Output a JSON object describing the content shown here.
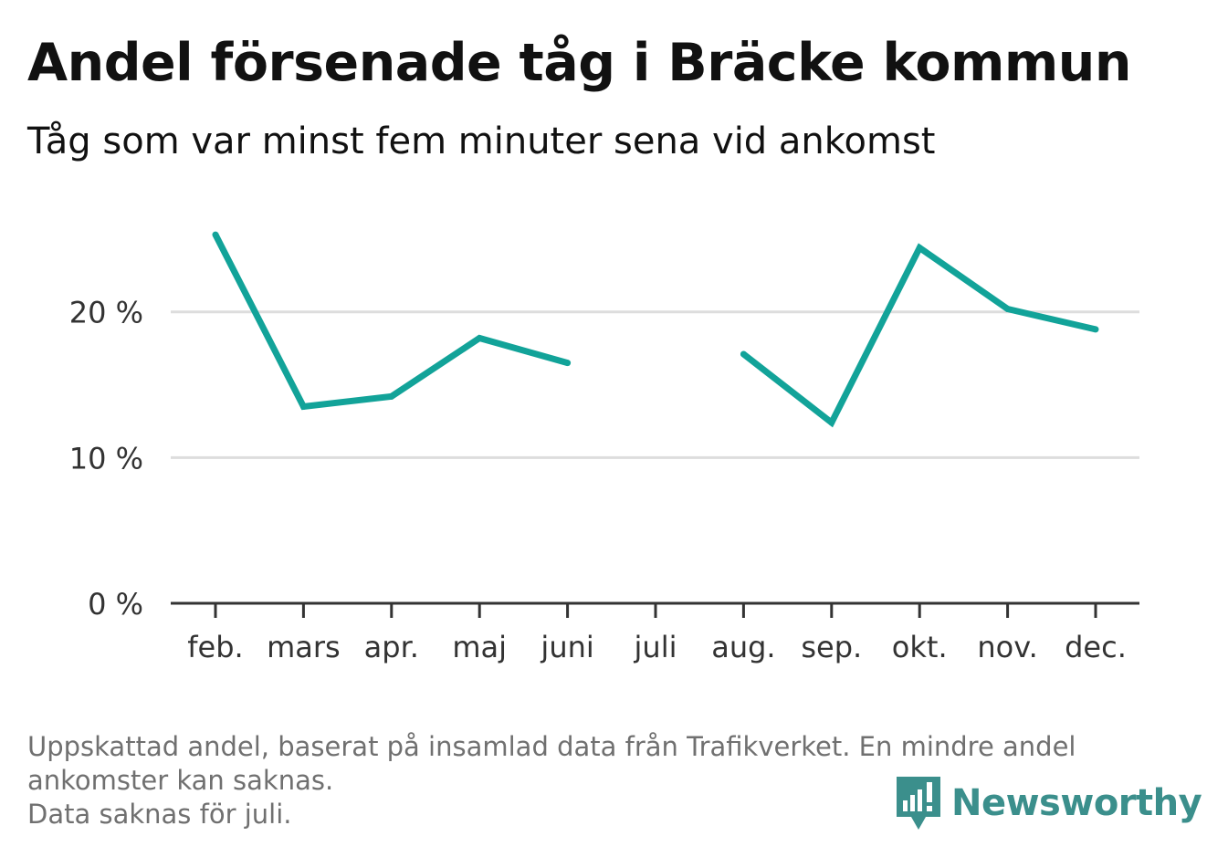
{
  "title": "Andel försenade tåg i Bräcke kommun",
  "subtitle": "Tåg som var minst fem minuter sena vid ankomst",
  "footnote": {
    "line1": "Uppskattad andel, baserat på insamlad data från Trafikverket. En mindre andel",
    "line2": "ankomster kan saknas.",
    "line3": "Data saknas för juli."
  },
  "brand": {
    "name": "Newsworthy",
    "icon": "newsworthy-logo-icon",
    "color": "#3b8f8c"
  },
  "colors": {
    "line": "#12a399",
    "grid": "#dddddd",
    "axis": "#333333",
    "text": "#333333"
  },
  "chart_data": {
    "type": "line",
    "categories": [
      "feb.",
      "mars",
      "apr.",
      "maj",
      "juni",
      "juli",
      "aug.",
      "sep.",
      "okt.",
      "nov.",
      "dec."
    ],
    "series": [
      {
        "values": [
          25.3,
          13.5,
          14.2,
          18.2,
          16.5,
          null,
          17.1,
          12.4,
          24.4,
          20.2,
          18.8
        ]
      }
    ],
    "ylim": [
      0,
      27
    ],
    "yticks": [
      0,
      10,
      20
    ],
    "ytick_labels": [
      "0 %",
      "10 %",
      "20 %"
    ],
    "grid": true,
    "xlabel": "",
    "ylabel": ""
  }
}
